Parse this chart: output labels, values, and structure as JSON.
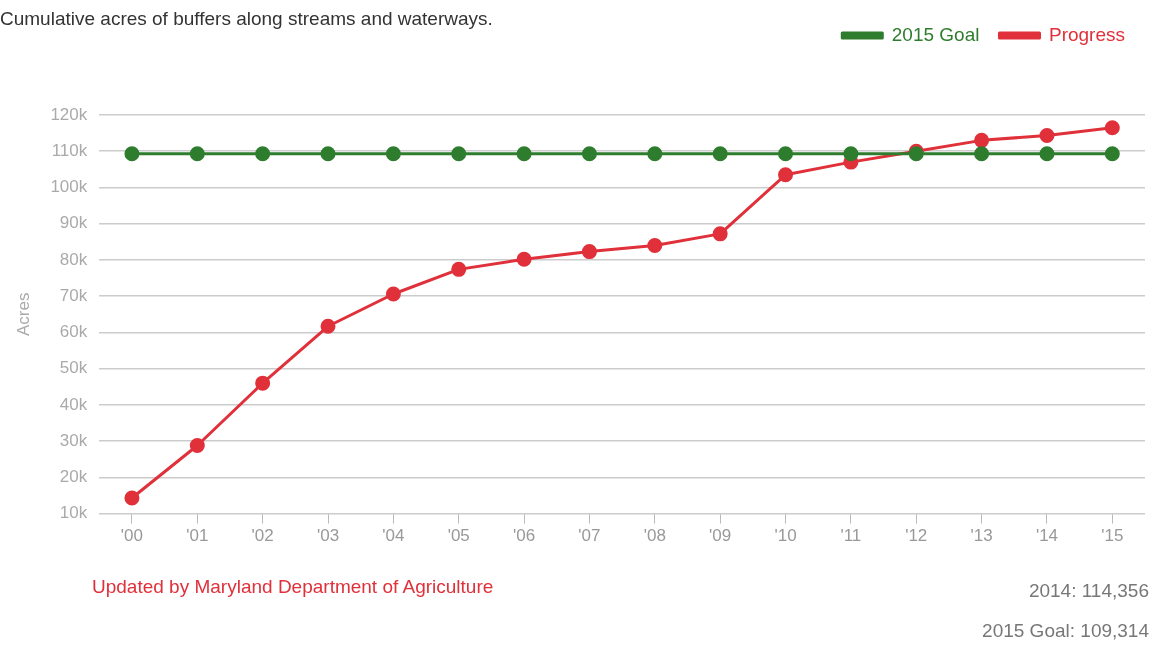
{
  "chart_data": {
    "type": "line",
    "title": "Cumulative acres of buffers along streams and waterways.",
    "ylabel": "Acres",
    "categories": [
      "'00",
      "'01",
      "'02",
      "'03",
      "'04",
      "'05",
      "'06",
      "'07",
      "'08",
      "'09",
      "'10",
      "'11",
      "'12",
      "'13",
      "'14",
      "'15"
    ],
    "series": [
      {
        "name": "Progress",
        "color": "#e0303a",
        "values": [
          14300,
          28800,
          46000,
          61700,
          70600,
          77400,
          80200,
          82300,
          84000,
          87200,
          103500,
          107000,
          110000,
          113000,
          114356,
          116500
        ]
      },
      {
        "name": "2015 Goal",
        "color": "#2e7d2e",
        "values": [
          109314,
          109314,
          109314,
          109314,
          109314,
          109314,
          109314,
          109314,
          109314,
          109314,
          109314,
          109314,
          109314,
          109314,
          109314,
          109314
        ]
      }
    ],
    "ylim": [
      10000,
      120000
    ],
    "yticks": [
      {
        "value": 10000,
        "label": "10k"
      },
      {
        "value": 20000,
        "label": "20k"
      },
      {
        "value": 30000,
        "label": "30k"
      },
      {
        "value": 40000,
        "label": "40k"
      },
      {
        "value": 50000,
        "label": "50k"
      },
      {
        "value": 60000,
        "label": "60k"
      },
      {
        "value": 70000,
        "label": "70k"
      },
      {
        "value": 80000,
        "label": "80k"
      },
      {
        "value": 90000,
        "label": "90k"
      },
      {
        "value": 100000,
        "label": "100k"
      },
      {
        "value": 110000,
        "label": "110k"
      },
      {
        "value": 120000,
        "label": "120k"
      }
    ],
    "grid": "y",
    "legend": "top right",
    "marker": "circle",
    "line_style": "solid",
    "annotations": [
      "Updated by Maryland Department of Agriculture",
      "2014: 114,356",
      "2015 Goal: 109,314"
    ]
  }
}
